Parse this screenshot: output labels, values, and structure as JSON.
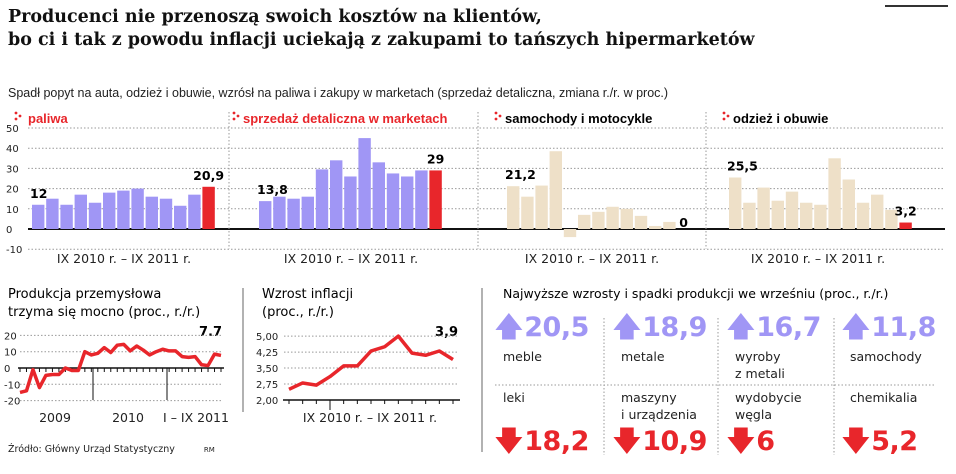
{
  "header": {
    "title_line1": "Producenci nie przenoszą swoich kosztów na klientów,",
    "title_line2": "bo ci i tak z powodu inflacji uciekają z zakupami to tańszych hipermarketów",
    "subtitle": "Spadł popyt na auta, odzież i obuwie, wzrósł na paliwa i zakupy w marketach (sprzedaż detaliczna, zmiana r./r. w proc.)"
  },
  "colors": {
    "up": "#a096f5",
    "down": "#e8262b",
    "beige": "#eee0c8",
    "accent_red": "#e8262b",
    "line_red": "#e8262b"
  },
  "chart_data": [
    {
      "type": "bar",
      "title": "paliwa",
      "xlabel": "IX 2010 r. – IX 2011 r.",
      "ylim": [
        -10,
        50
      ],
      "yticks": [
        50,
        40,
        30,
        20,
        10,
        0,
        -10
      ],
      "grid": true,
      "values": [
        12,
        15,
        12,
        17,
        13,
        18,
        19,
        20,
        16,
        15,
        11.5,
        17,
        20.9
      ],
      "first_label": "12",
      "last_label": "20,9",
      "bar_color": "#a096f5",
      "last_color": "#e8262b",
      "title_color": "#e8262b"
    },
    {
      "type": "bar",
      "title": "sprzedaż detaliczna w marketach",
      "xlabel": "IX 2010 r. – IX 2011 r.",
      "ylim": [
        -10,
        50
      ],
      "values": [
        13.8,
        16,
        15,
        16,
        29.5,
        34,
        26,
        45,
        33,
        27.5,
        26,
        29,
        29
      ],
      "first_label": "13,8",
      "last_label": "29",
      "bar_color": "#a096f5",
      "last_color": "#e8262b",
      "title_color": "#e8262b"
    },
    {
      "type": "bar",
      "title": "samochody i motocykle",
      "xlabel": "IX 2010 r. – IX 2011 r.",
      "ylim": [
        -10,
        50
      ],
      "values": [
        21.2,
        16,
        21.5,
        38.5,
        -4,
        7,
        8.5,
        11,
        10,
        6.5,
        1.5,
        3.5,
        0
      ],
      "first_label": "21,2",
      "last_label": "0",
      "bar_color": "#eee0c8",
      "last_color": "#e8262b",
      "title_color": "#111"
    },
    {
      "type": "bar",
      "title": "odzież i obuwie",
      "xlabel": "IX 2010 r. – IX 2011 r.",
      "ylim": [
        -10,
        50
      ],
      "values": [
        25.5,
        13,
        20.5,
        14,
        18.5,
        13,
        12,
        35,
        24.5,
        13,
        17,
        9.5,
        3.2
      ],
      "first_label": "25,5",
      "last_label": "3,2",
      "bar_color": "#eee0c8",
      "last_color": "#e8262b",
      "title_color": "#111"
    },
    {
      "type": "line",
      "title_line1": "Produkcja przemysłowa",
      "title_line2": "trzyma się mocno (proc., r./r.)",
      "ylim": [
        -20,
        20
      ],
      "yticks": [
        "20",
        "10",
        "0",
        "-10",
        "-20"
      ],
      "xticks": [
        "2009",
        "2010",
        "I – IX 2011"
      ],
      "last_label": "7.7",
      "values": [
        -15,
        -14,
        -1,
        -12,
        -4.5,
        -4,
        -4,
        0,
        -1.5,
        -1.5,
        10,
        8,
        9,
        12.5,
        9.5,
        14,
        14.5,
        10.5,
        13.5,
        11,
        8,
        10,
        11.5,
        10.5,
        10.5,
        7,
        6.5,
        7,
        2,
        1.5,
        8.5,
        7.7
      ]
    },
    {
      "type": "line",
      "title_line1": "Wzrost inflacji",
      "title_line2": "(proc., r./r.)",
      "ylim": [
        2.0,
        5.0
      ],
      "yticks": [
        "5,00",
        "4,25",
        "3,50",
        "2,75",
        "2,00"
      ],
      "xlabel": "IX 2010 r. – IX 2011 r.",
      "last_label": "3,9",
      "values": [
        2.5,
        2.8,
        2.7,
        3.1,
        3.6,
        3.6,
        4.3,
        4.5,
        5.0,
        4.2,
        4.1,
        4.3,
        3.9
      ]
    }
  ],
  "production": {
    "title": "Najwyższe wzrosty i spadki produkcji we wrześniu (proc., r./r.)",
    "up": [
      {
        "value": "20,5",
        "label": "meble"
      },
      {
        "value": "18,9",
        "label": "metale"
      },
      {
        "value": "16,7",
        "label": "wyroby\nz metali"
      },
      {
        "value": "11,8",
        "label": "samochody"
      }
    ],
    "down": [
      {
        "value": "18,2",
        "label": "leki"
      },
      {
        "value": "10,9",
        "label": "maszyny\ni urządzenia"
      },
      {
        "value": "6",
        "label": "wydobycie\nwęgla"
      },
      {
        "value": "5,2",
        "label": "chemikalia"
      }
    ],
    "up_icon": "arrow-up-icon",
    "down_icon": "arrow-down-icon"
  },
  "footer": {
    "source": "Źródło: Główny Urząd Statystyczny",
    "author": "RM"
  }
}
